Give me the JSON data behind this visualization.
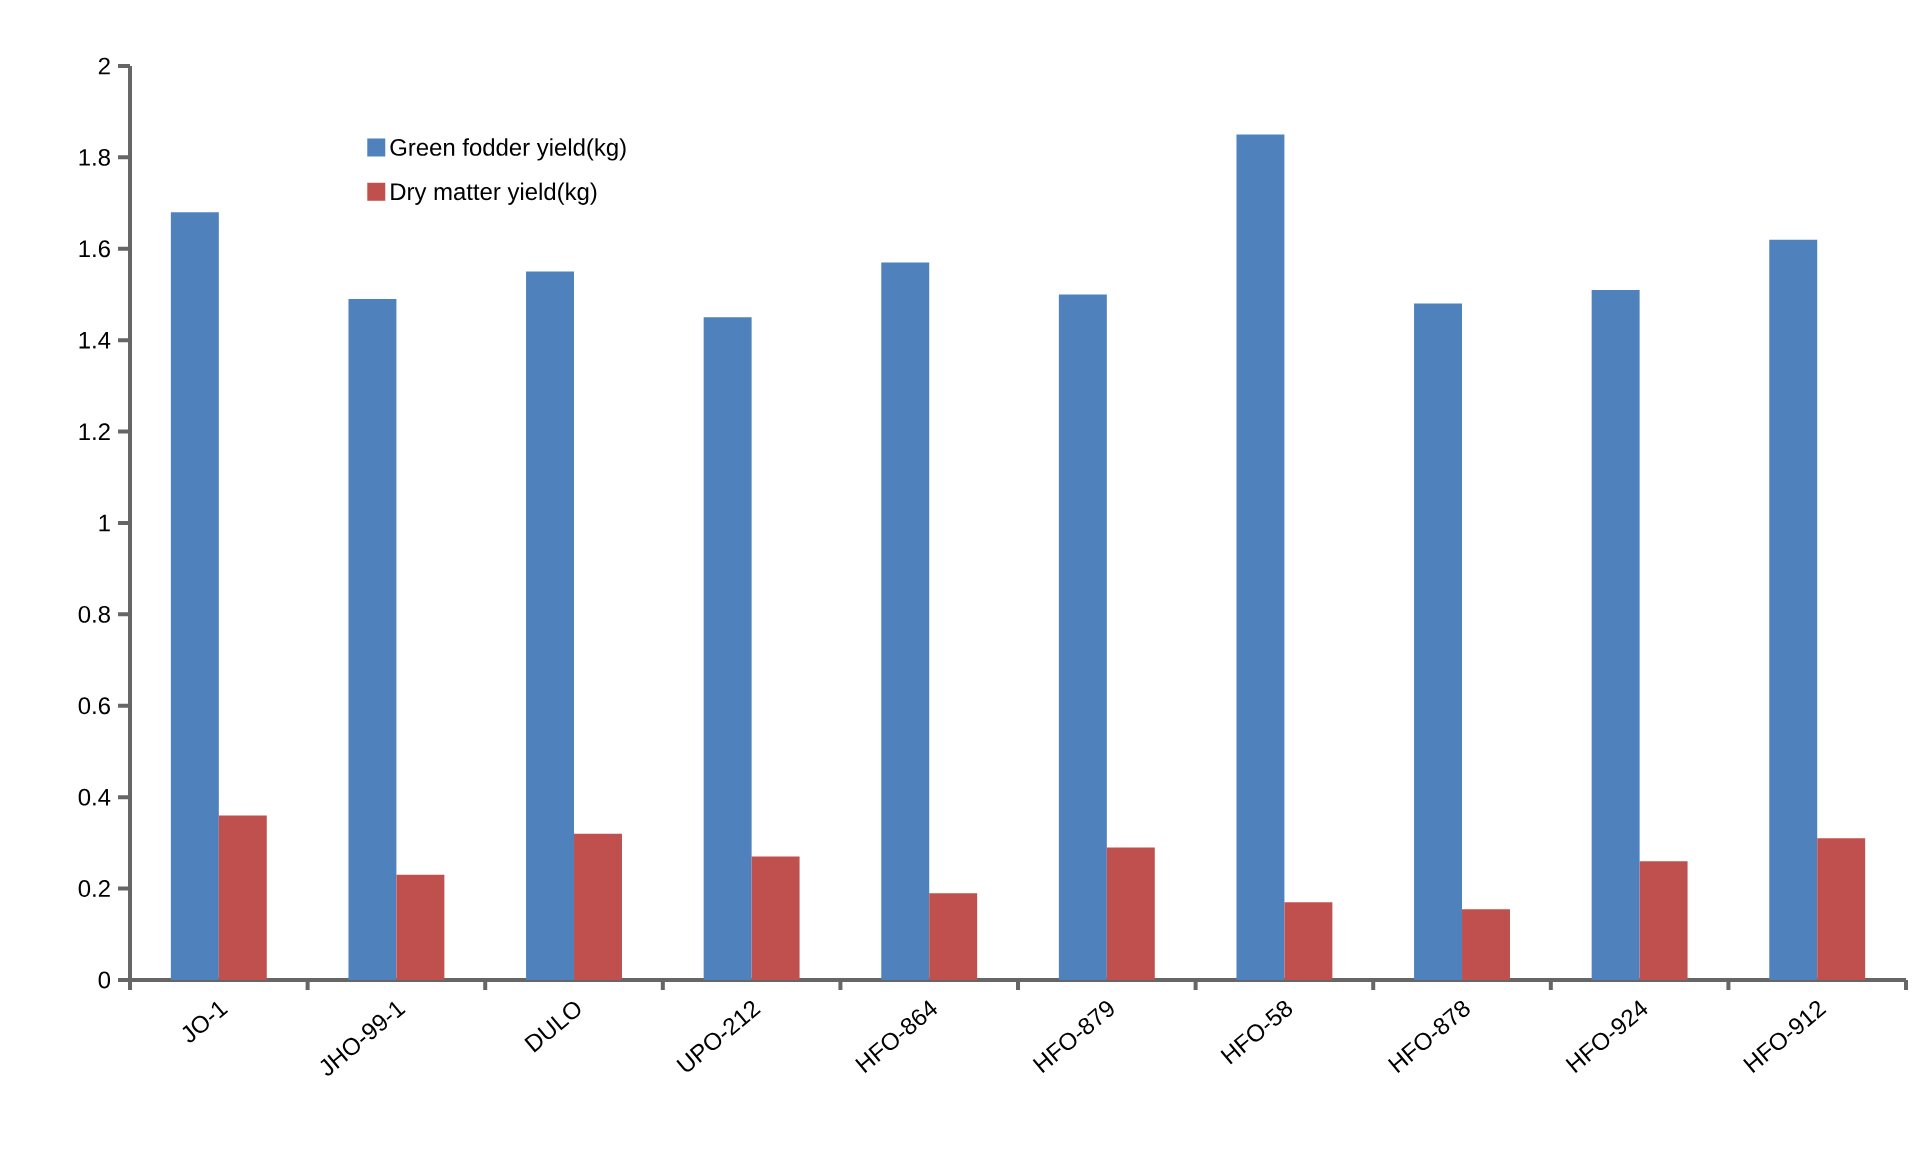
{
  "chart_data": {
    "type": "bar",
    "categories": [
      "JO-1",
      "JHO-99-1",
      "DULO",
      "UPO-212",
      "HFO-864",
      "HFO-879",
      "HFO-58",
      "HFO-878",
      "HFO-924",
      "HFO-912"
    ],
    "series": [
      {
        "name": "Green fodder yield(kg)",
        "color": "#4f81bd",
        "values": [
          1.68,
          1.49,
          1.55,
          1.45,
          1.57,
          1.5,
          1.85,
          1.48,
          1.51,
          1.62
        ]
      },
      {
        "name": "Dry matter yield(kg)",
        "color": "#c0504d",
        "values": [
          0.36,
          0.23,
          0.32,
          0.27,
          0.19,
          0.29,
          0.17,
          0.155,
          0.26,
          0.31
        ]
      }
    ],
    "ylim": [
      0,
      2
    ],
    "yticks": [
      0,
      0.2,
      0.4,
      0.6,
      0.8,
      1,
      1.2,
      1.4,
      1.6,
      1.8,
      2
    ],
    "grid": false,
    "legend": "top left"
  }
}
